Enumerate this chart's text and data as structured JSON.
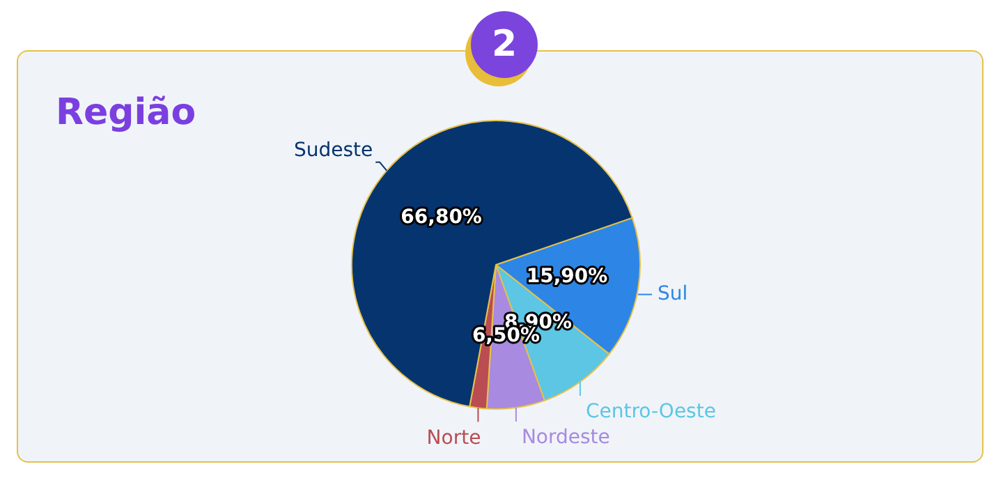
{
  "chart_data": {
    "type": "pie",
    "title": "Região",
    "categories": [
      "Sul",
      "Centro-Oeste",
      "Nordeste",
      "Norte",
      "Sudeste"
    ],
    "values": [
      15.9,
      8.9,
      6.5,
      1.9,
      66.8
    ],
    "colors": [
      "#2d86e6",
      "#5cc6e4",
      "#a88ae0",
      "#b94d52",
      "#06346f"
    ],
    "value_labels": [
      "15,90%",
      "8,90%",
      "6,50%",
      null,
      "66,80%"
    ],
    "legend": false,
    "annotations": [
      "2"
    ]
  }
}
